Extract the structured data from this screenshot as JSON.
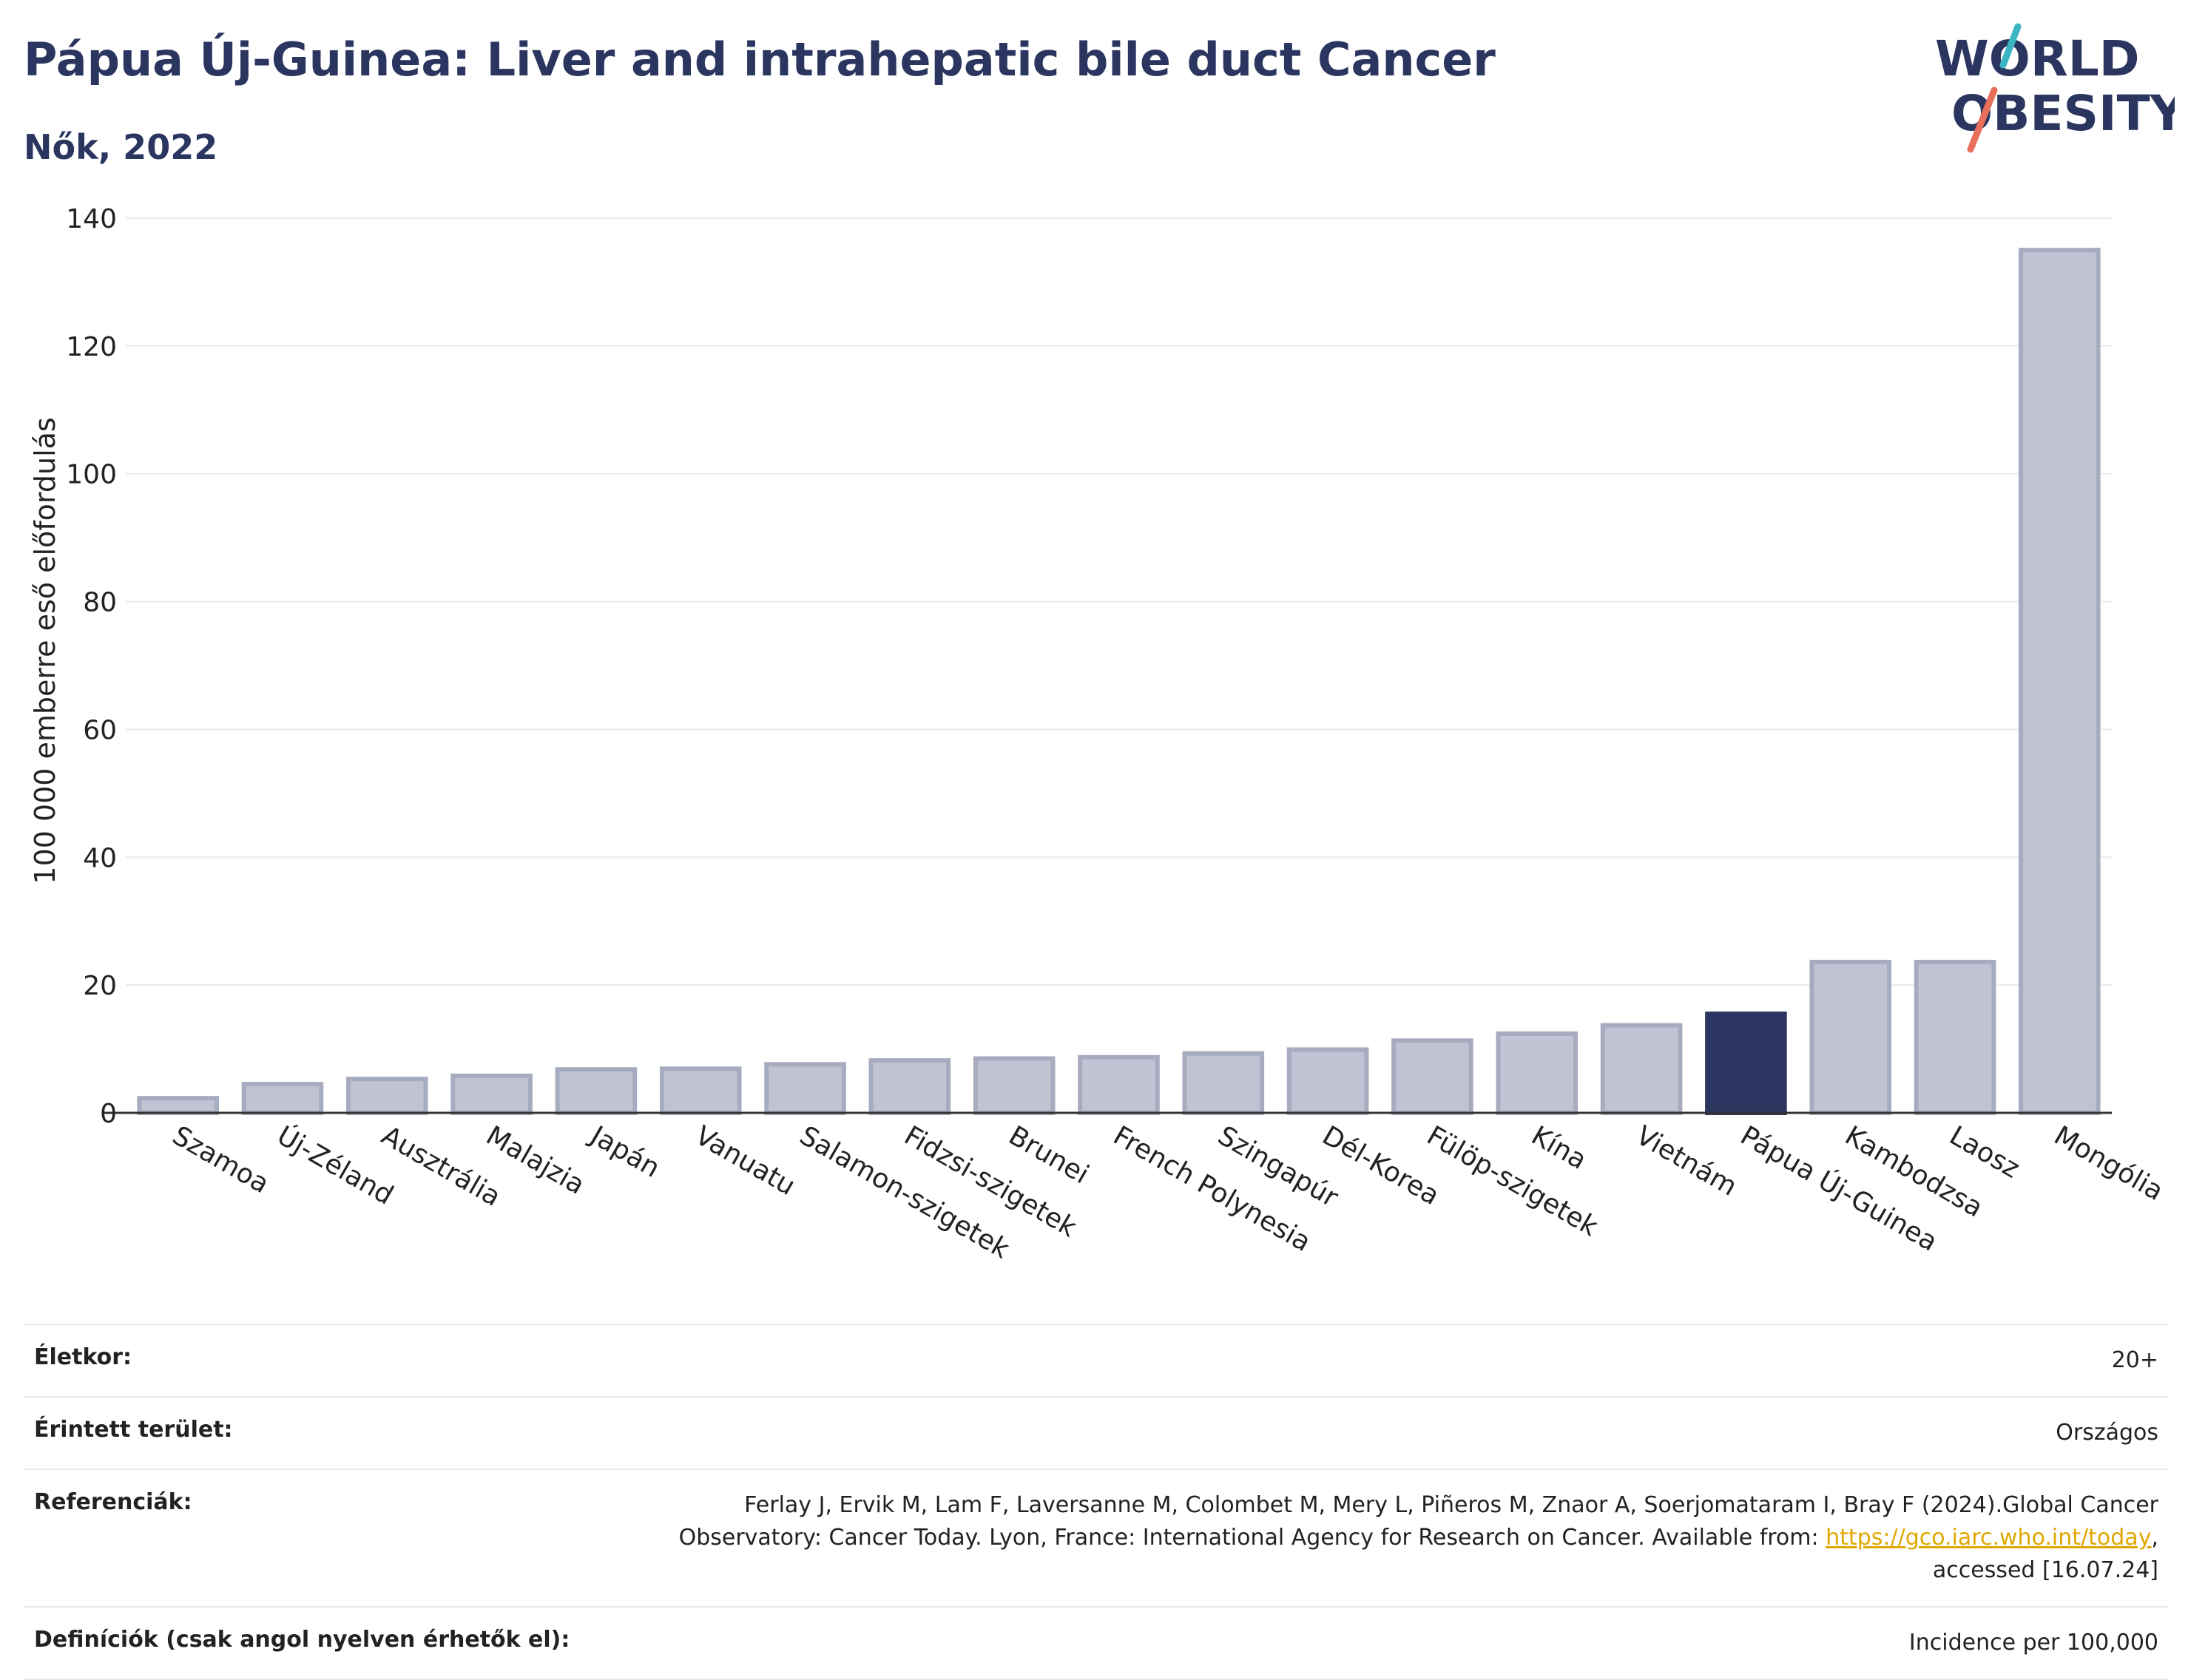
{
  "title": "Pápua Új-Guinea: Liver and intrahepatic bile duct Cancer",
  "subtitle": "Nők, 2022",
  "logo": {
    "line1": "WORLD",
    "line2": "OBESITY"
  },
  "colors": {
    "title": "#2a3560",
    "bar_default": "#c0c3d1",
    "bar_default_stroke": "#a7abbf",
    "bar_highlight": "#2a3560",
    "grid": "#e8ecf2",
    "axis": "#333333",
    "link": "#e0a800",
    "logo_teal": "#3bb6c2",
    "logo_coral": "#e8705a"
  },
  "chart_data": {
    "type": "bar",
    "title": "Pápua Új-Guinea: Liver and intrahepatic bile duct Cancer",
    "subtitle": "Nők, 2022",
    "xlabel": "",
    "ylabel": "100 000 emberre eső előfordulás",
    "ylim": [
      0,
      140
    ],
    "yticks": [
      0,
      20,
      40,
      60,
      80,
      100,
      120,
      140
    ],
    "grid": true,
    "highlight": "Pápua Új-Guinea",
    "categories": [
      "Szamoa",
      "Új-Zéland",
      "Ausztrália",
      "Malajzia",
      "Japán",
      "Vanuatu",
      "Salamon-szigetek",
      "Fidzsi-szigetek",
      "Brunei",
      "French Polynesia",
      "Szingapúr",
      "Dél-Korea",
      "Fülöp-szigetek",
      "Kína",
      "Vietnám",
      "Pápua Új-Guinea",
      "Kambodzsa",
      "Laosz",
      "Mongólia"
    ],
    "values": [
      2.3,
      4.5,
      5.3,
      5.8,
      6.8,
      6.9,
      7.6,
      8.2,
      8.5,
      8.7,
      9.3,
      9.9,
      11.3,
      12.4,
      13.7,
      15.5,
      23.6,
      23.6,
      135.0
    ]
  },
  "info": {
    "age_label": "Életkor:",
    "age_value": "20+",
    "area_label": "Érintett terület:",
    "area_value": "Országos",
    "refs_label": "Referenciák:",
    "refs_text_1": "Ferlay J, Ervik M, Lam F, Laversanne M, Colombet M, Mery L, Piñeros M, Znaor A, Soerjomataram I, Bray F (2024).Global Cancer",
    "refs_text_2": "Observatory: Cancer Today. Lyon, France: International Agency for Research on Cancer. Available from: ",
    "refs_link": "https://gco.iarc.who.int/today",
    "refs_text_3": ",",
    "refs_text_4": "accessed [16.07.24]",
    "defs_label": "Definíciók (csak angol nyelven érhetők el):",
    "defs_value": "Incidence per 100,000"
  }
}
